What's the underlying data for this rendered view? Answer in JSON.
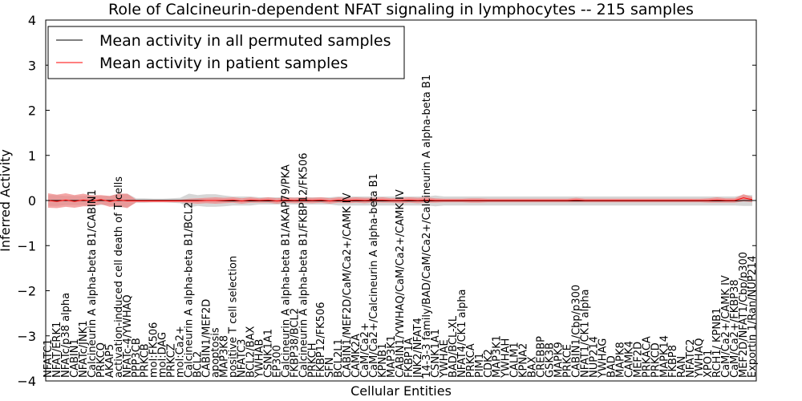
{
  "chart_data": {
    "type": "line",
    "title": "Role of Calcineurin-dependent NFAT signaling in lymphocytes -- 215 samples",
    "xlabel": "Cellular Entities",
    "ylabel": "Inferred Activity",
    "ylim": [
      -4,
      4
    ],
    "yticks": [
      4,
      3,
      2,
      1,
      0,
      -1,
      -2,
      -3,
      -4
    ],
    "ytick_labels": [
      "4",
      "3",
      "2",
      "1",
      "0",
      "−1",
      "−2",
      "−3",
      "−4"
    ],
    "grid": false,
    "legend_position": "top-left",
    "categories": [
      "NFATC1",
      "NFAT/ERK1",
      "NFATc/p38 alpha",
      "CABIN1",
      "NFATc/JNK1",
      "Calcineurin A alpha-beta B1/CABIN1",
      "PRKCQ",
      "AKAP5",
      "activation-induced cell death of T cells",
      "NFATc-4/YWHAQ",
      "PPP3CB",
      "PRKCB",
      "mol:FK506",
      "mol:DAG",
      "PRKCZ",
      "mol:Ca2+",
      "Calcineurin A alpha-beta B1/BCL2",
      "BCL2",
      "CABIN1/MEF2D",
      "apoptosis",
      "MAP3K8",
      "positive T cell selection",
      "NFATC3",
      "BCL2/BAX",
      "YWHAB",
      "CSNK1A1",
      "EP300",
      "Calcineurin A alpha-beta B1/AKAP79/PKA",
      "FKBP38/BCL2",
      "Calcineurin A alpha-beta B1/FKBP12/FK506",
      "PRKCH",
      "FKBP12/FK506",
      "SFN",
      "BCL2L1",
      "CABIN1/MEF2D/CaM/Ca2+/CAMK IV",
      "CAMK2A",
      "CaM/Ca2+",
      "CaM/Ca2+/Calcineurin A alpha-beta B1",
      "KPNB1",
      "MAP3K1",
      "CABIN1/YWHAQ/CaM/Ca2+/CAMK IV",
      "FKBP1A",
      "JNK2/NFAT4",
      "14-3-3 family/BAD/CaM/Ca2+/Calcineurin A alpha-beta B1",
      "CSNK1A1",
      "YWHAE",
      "BAD/BCL-XL",
      "NFAT4/CK1 alpha",
      "PRKCA",
      "PIM1",
      "CDK2",
      "MAP3K1",
      "YWHAH",
      "CALM1",
      "KPNA2",
      "BAX",
      "CREBBP",
      "GSK3B",
      "MAPK9",
      "PRKCE",
      "CABIN1/Cbp/p300",
      "NFAT1/CK1 alpha",
      "NUP214",
      "YWHAG",
      "BAD",
      "MAPK8",
      "CAMK4",
      "MEF2D",
      "PRKACA",
      "PRKCD",
      "MAPK14",
      "FKBP8",
      "RAN",
      "NFATC2",
      "YWHAQ",
      "XPO1",
      "RCH1/ KPNB1",
      "CaM/Ca2+/CAMK IV",
      "CaM/Ca2+/FKBP38",
      "MEF2D/NFAT1/Cbp/p300",
      "Exportin 1/Ran/NUP214"
    ],
    "series": [
      {
        "name": "Mean activity in all permuted samples",
        "color": "#000000",
        "band_color": "#b4b4b4",
        "values": [
          0.0,
          0.0,
          0.0,
          0.0,
          0.0,
          0.0,
          0.0,
          0.0,
          0.0,
          0.0,
          0.0,
          0.0,
          0.0,
          0.0,
          0.0,
          0.0,
          0.0,
          0.0,
          0.0,
          0.0,
          -0.01,
          -0.01,
          -0.01,
          -0.01,
          -0.01,
          -0.01,
          -0.01,
          -0.01,
          -0.01,
          -0.01,
          -0.01,
          -0.01,
          -0.01,
          -0.01,
          -0.01,
          -0.01,
          -0.01,
          -0.01,
          -0.01,
          -0.01,
          -0.01,
          -0.01,
          -0.01,
          -0.01,
          -0.01,
          -0.01,
          -0.01,
          -0.01,
          -0.01,
          -0.01,
          -0.01,
          -0.01,
          -0.01,
          -0.01,
          -0.01,
          -0.01,
          -0.01,
          -0.01,
          -0.01,
          -0.01,
          -0.01,
          -0.01,
          -0.01,
          -0.01,
          -0.01,
          -0.01,
          -0.01,
          -0.01,
          -0.01,
          -0.01,
          -0.01,
          -0.01,
          -0.01,
          -0.01,
          -0.01,
          -0.01,
          -0.01,
          -0.01,
          -0.01,
          0.0,
          0.0
        ],
        "band": [
          0.12,
          0.12,
          0.1,
          0.1,
          0.1,
          0.12,
          0.1,
          0.1,
          0.15,
          0.15,
          0.05,
          0.05,
          0.04,
          0.04,
          0.05,
          0.06,
          0.15,
          0.12,
          0.14,
          0.14,
          0.12,
          0.1,
          0.1,
          0.1,
          0.08,
          0.08,
          0.08,
          0.08,
          0.08,
          0.08,
          0.08,
          0.08,
          0.08,
          0.1,
          0.1,
          0.1,
          0.1,
          0.1,
          0.1,
          0.1,
          0.1,
          0.1,
          0.1,
          0.1,
          0.12,
          0.1,
          0.1,
          0.1,
          0.1,
          0.1,
          0.1,
          0.1,
          0.1,
          0.1,
          0.1,
          0.1,
          0.1,
          0.1,
          0.1,
          0.1,
          0.1,
          0.1,
          0.1,
          0.1,
          0.1,
          0.1,
          0.1,
          0.1,
          0.1,
          0.1,
          0.1,
          0.1,
          0.1,
          0.1,
          0.1,
          0.1,
          0.1,
          0.1,
          0.1,
          0.12,
          0.12
        ]
      },
      {
        "name": "Mean activity in patient samples",
        "color": "#ff0000",
        "band_color": "#f08080",
        "values": [
          0.0,
          -0.02,
          0.01,
          -0.02,
          0.01,
          -0.01,
          0.02,
          -0.02,
          0.01,
          -0.01,
          -0.01,
          -0.01,
          -0.01,
          -0.01,
          -0.01,
          -0.01,
          -0.01,
          -0.01,
          0.0,
          0.0,
          0.0,
          0.01,
          -0.01,
          0.01,
          0.0,
          0.01,
          -0.01,
          0.01,
          0.0,
          0.01,
          0.0,
          0.01,
          -0.01,
          0.01,
          0.0,
          0.01,
          0.0,
          0.01,
          0.01,
          0.0,
          0.0,
          0.01,
          0.0,
          0.01,
          0.0,
          0.0,
          0.0,
          0.0,
          0.0,
          0.0,
          0.0,
          0.0,
          0.0,
          0.0,
          0.0,
          0.0,
          0.0,
          0.0,
          0.0,
          0.0,
          0.01,
          0.0,
          0.0,
          0.0,
          0.0,
          0.0,
          0.0,
          0.0,
          0.0,
          0.0,
          0.0,
          0.0,
          0.0,
          0.0,
          0.0,
          0.0,
          0.01,
          0.0,
          0.0,
          0.06,
          0.02
        ],
        "band": [
          0.16,
          0.15,
          0.15,
          0.14,
          0.14,
          0.12,
          0.1,
          0.12,
          0.14,
          0.16,
          0.03,
          0.03,
          0.03,
          0.03,
          0.03,
          0.03,
          0.05,
          0.06,
          0.06,
          0.07,
          0.06,
          0.06,
          0.06,
          0.06,
          0.05,
          0.06,
          0.06,
          0.06,
          0.06,
          0.06,
          0.06,
          0.06,
          0.06,
          0.06,
          0.06,
          0.06,
          0.06,
          0.05,
          0.06,
          0.05,
          0.06,
          0.06,
          0.06,
          0.06,
          0.05,
          0.04,
          0.04,
          0.04,
          0.05,
          0.05,
          0.04,
          0.04,
          0.04,
          0.04,
          0.04,
          0.04,
          0.04,
          0.04,
          0.04,
          0.04,
          0.05,
          0.04,
          0.04,
          0.04,
          0.04,
          0.04,
          0.04,
          0.04,
          0.04,
          0.04,
          0.04,
          0.04,
          0.04,
          0.04,
          0.04,
          0.05,
          0.06,
          0.05,
          0.05,
          0.08,
          0.06
        ]
      }
    ]
  }
}
